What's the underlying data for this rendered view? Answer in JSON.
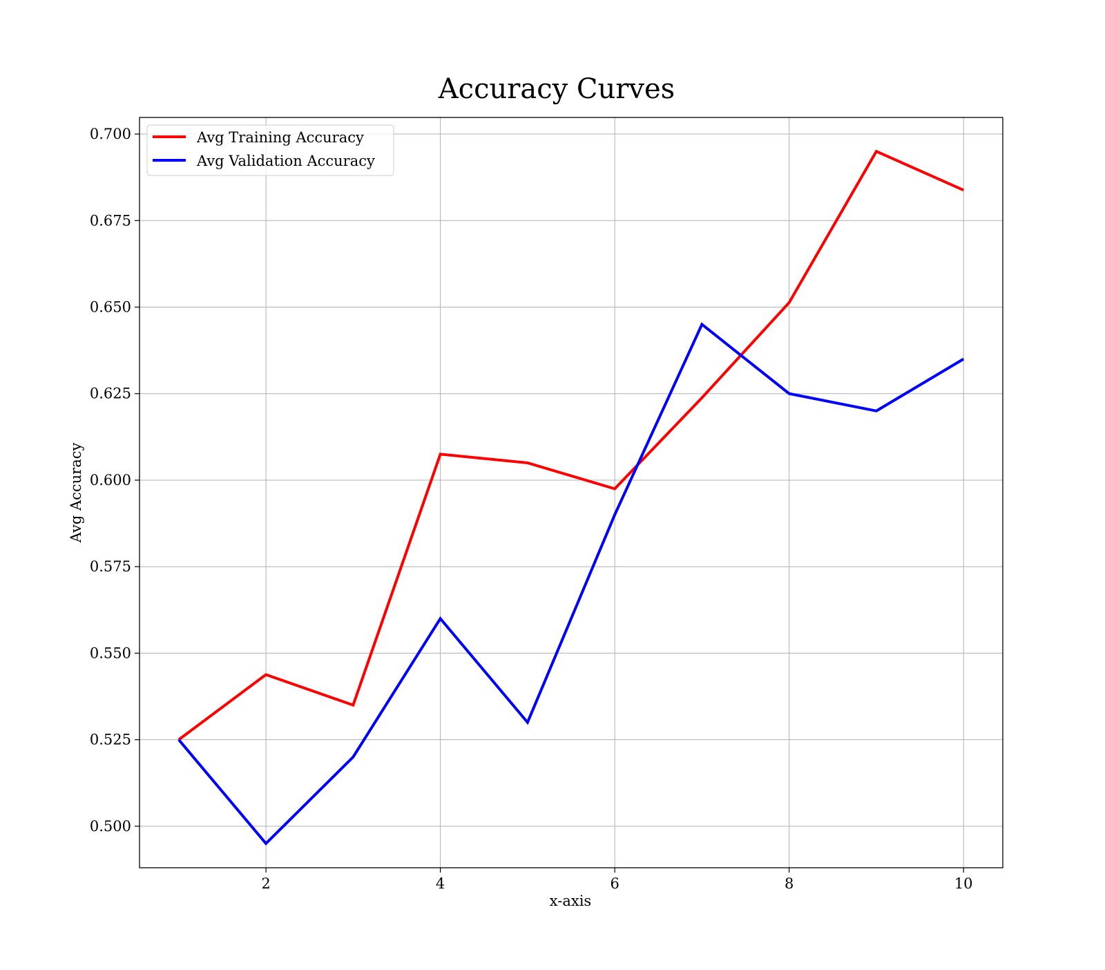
{
  "chart_data": {
    "type": "line",
    "title": "Accuracy Curves",
    "xlabel": "x-axis",
    "ylabel": "Avg Accuracy",
    "x": [
      1,
      2,
      3,
      4,
      5,
      6,
      7,
      8,
      9,
      10
    ],
    "xlim": [
      0.55,
      10.45
    ],
    "ylim": [
      0.488,
      0.7048
    ],
    "xticks": [
      2,
      4,
      6,
      8,
      10
    ],
    "xtick_labels": [
      "2",
      "4",
      "6",
      "8",
      "10"
    ],
    "yticks": [
      0.5,
      0.525,
      0.55,
      0.575,
      0.6,
      0.625,
      0.65,
      0.675,
      0.7
    ],
    "ytick_labels": [
      "0.500",
      "0.525",
      "0.550",
      "0.575",
      "0.600",
      "0.625",
      "0.650",
      "0.675",
      "0.700"
    ],
    "grid": true,
    "legend_position": "top-left",
    "series": [
      {
        "name": "Avg Training Accuracy",
        "color": "#ff0000",
        "values": [
          0.525,
          0.5438,
          0.535,
          0.6075,
          0.605,
          0.5975,
          0.6238,
          0.6513,
          0.695,
          0.6838
        ]
      },
      {
        "name": "Avg Validation Accuracy",
        "color": "#0000ff",
        "values": [
          0.525,
          0.495,
          0.52,
          0.56,
          0.53,
          0.59,
          0.645,
          0.625,
          0.62,
          0.635
        ]
      }
    ]
  }
}
